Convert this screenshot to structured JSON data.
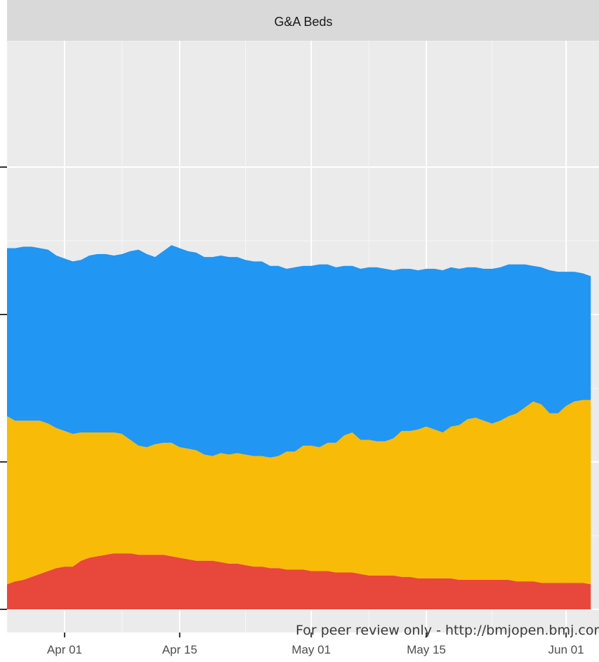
{
  "chart_data": {
    "type": "area",
    "stacked": true,
    "title": "G&A Beds",
    "xlabel": "",
    "ylabel": "",
    "x_ticks": [
      "Apr 01",
      "Apr 15",
      "May 01",
      "May 15",
      "Jun 01"
    ],
    "x_range": [
      "2020-03-25",
      "2020-06-05"
    ],
    "grid": true,
    "series": [
      {
        "color": "#E8473B",
        "points": [
          [
            "2020-03-25",
            17
          ],
          [
            "2020-03-26",
            19
          ],
          [
            "2020-03-27",
            20
          ],
          [
            "2020-03-28",
            22
          ],
          [
            "2020-03-29",
            24
          ],
          [
            "2020-03-30",
            26
          ],
          [
            "2020-03-31",
            28
          ],
          [
            "2020-04-01",
            29
          ],
          [
            "2020-04-02",
            29
          ],
          [
            "2020-04-03",
            33
          ],
          [
            "2020-04-04",
            35
          ],
          [
            "2020-04-05",
            36
          ],
          [
            "2020-04-06",
            37
          ],
          [
            "2020-04-07",
            38
          ],
          [
            "2020-04-08",
            38
          ],
          [
            "2020-04-09",
            38
          ],
          [
            "2020-04-10",
            37
          ],
          [
            "2020-04-11",
            37
          ],
          [
            "2020-04-12",
            37
          ],
          [
            "2020-04-13",
            37
          ],
          [
            "2020-04-14",
            36
          ],
          [
            "2020-04-15",
            35
          ],
          [
            "2020-04-16",
            34
          ],
          [
            "2020-04-17",
            33
          ],
          [
            "2020-04-18",
            33
          ],
          [
            "2020-04-19",
            33
          ],
          [
            "2020-04-20",
            32
          ],
          [
            "2020-04-21",
            31
          ],
          [
            "2020-04-22",
            31
          ],
          [
            "2020-04-23",
            30
          ],
          [
            "2020-04-24",
            29
          ],
          [
            "2020-04-25",
            29
          ],
          [
            "2020-04-26",
            28
          ],
          [
            "2020-04-27",
            28
          ],
          [
            "2020-04-28",
            27
          ],
          [
            "2020-04-29",
            27
          ],
          [
            "2020-04-30",
            27
          ],
          [
            "2020-05-01",
            26
          ],
          [
            "2020-05-02",
            26
          ],
          [
            "2020-05-03",
            26
          ],
          [
            "2020-05-04",
            25
          ],
          [
            "2020-05-05",
            25
          ],
          [
            "2020-05-06",
            25
          ],
          [
            "2020-05-07",
            24
          ],
          [
            "2020-05-08",
            23
          ],
          [
            "2020-05-09",
            23
          ],
          [
            "2020-05-10",
            23
          ],
          [
            "2020-05-11",
            23
          ],
          [
            "2020-05-12",
            22
          ],
          [
            "2020-05-13",
            22
          ],
          [
            "2020-05-14",
            21
          ],
          [
            "2020-05-15",
            21
          ],
          [
            "2020-05-16",
            21
          ],
          [
            "2020-05-17",
            21
          ],
          [
            "2020-05-18",
            21
          ],
          [
            "2020-05-19",
            20
          ],
          [
            "2020-05-20",
            20
          ],
          [
            "2020-05-21",
            20
          ],
          [
            "2020-05-22",
            20
          ],
          [
            "2020-05-23",
            20
          ],
          [
            "2020-05-24",
            20
          ],
          [
            "2020-05-25",
            20
          ],
          [
            "2020-05-26",
            19
          ],
          [
            "2020-05-27",
            19
          ],
          [
            "2020-05-28",
            19
          ],
          [
            "2020-05-29",
            18
          ],
          [
            "2020-05-30",
            18
          ],
          [
            "2020-05-31",
            18
          ],
          [
            "2020-06-01",
            18
          ],
          [
            "2020-06-02",
            18
          ],
          [
            "2020-06-03",
            18
          ],
          [
            "2020-06-04",
            17
          ]
        ]
      },
      {
        "color": "#F8BB07",
        "points": [
          [
            "2020-03-25",
            114
          ],
          [
            "2020-03-26",
            109
          ],
          [
            "2020-03-27",
            108
          ],
          [
            "2020-03-28",
            106
          ],
          [
            "2020-03-29",
            104
          ],
          [
            "2020-03-30",
            100
          ],
          [
            "2020-03-31",
            95
          ],
          [
            "2020-04-01",
            92
          ],
          [
            "2020-04-02",
            90
          ],
          [
            "2020-04-03",
            87
          ],
          [
            "2020-04-04",
            85
          ],
          [
            "2020-04-05",
            84
          ],
          [
            "2020-04-06",
            83
          ],
          [
            "2020-04-07",
            82
          ],
          [
            "2020-04-08",
            81
          ],
          [
            "2020-04-09",
            77
          ],
          [
            "2020-04-10",
            74
          ],
          [
            "2020-04-11",
            73
          ],
          [
            "2020-04-12",
            75
          ],
          [
            "2020-04-13",
            76
          ],
          [
            "2020-04-14",
            77
          ],
          [
            "2020-04-15",
            75
          ],
          [
            "2020-04-16",
            75
          ],
          [
            "2020-04-17",
            75
          ],
          [
            "2020-04-18",
            72
          ],
          [
            "2020-04-19",
            71
          ],
          [
            "2020-04-20",
            74
          ],
          [
            "2020-04-21",
            74
          ],
          [
            "2020-04-22",
            75
          ],
          [
            "2020-04-23",
            75
          ],
          [
            "2020-04-24",
            75
          ],
          [
            "2020-04-25",
            75
          ],
          [
            "2020-04-26",
            75
          ],
          [
            "2020-04-27",
            76
          ],
          [
            "2020-04-28",
            80
          ],
          [
            "2020-04-29",
            80
          ],
          [
            "2020-04-30",
            84
          ],
          [
            "2020-05-01",
            85
          ],
          [
            "2020-05-02",
            84
          ],
          [
            "2020-05-03",
            87
          ],
          [
            "2020-05-04",
            88
          ],
          [
            "2020-05-05",
            93
          ],
          [
            "2020-05-06",
            95
          ],
          [
            "2020-05-07",
            91
          ],
          [
            "2020-05-08",
            92
          ],
          [
            "2020-05-09",
            91
          ],
          [
            "2020-05-10",
            91
          ],
          [
            "2020-05-11",
            93
          ],
          [
            "2020-05-12",
            99
          ],
          [
            "2020-05-13",
            99
          ],
          [
            "2020-05-14",
            101
          ],
          [
            "2020-05-15",
            103
          ],
          [
            "2020-05-16",
            101
          ],
          [
            "2020-05-17",
            99
          ],
          [
            "2020-05-18",
            103
          ],
          [
            "2020-05-19",
            105
          ],
          [
            "2020-05-20",
            109
          ],
          [
            "2020-05-21",
            110
          ],
          [
            "2020-05-22",
            108
          ],
          [
            "2020-05-23",
            106
          ],
          [
            "2020-05-24",
            108
          ],
          [
            "2020-05-25",
            111
          ],
          [
            "2020-05-26",
            114
          ],
          [
            "2020-05-27",
            118
          ],
          [
            "2020-05-28",
            122
          ],
          [
            "2020-05-29",
            121
          ],
          [
            "2020-05-30",
            115
          ],
          [
            "2020-05-31",
            115
          ],
          [
            "2020-06-01",
            120
          ],
          [
            "2020-06-02",
            123
          ],
          [
            "2020-06-03",
            124
          ],
          [
            "2020-06-04",
            125
          ]
        ]
      },
      {
        "color": "#2196F3",
        "points": [
          [
            "2020-03-25",
            114
          ],
          [
            "2020-03-26",
            117
          ],
          [
            "2020-03-27",
            118
          ],
          [
            "2020-03-28",
            118
          ],
          [
            "2020-03-29",
            117
          ],
          [
            "2020-03-30",
            118
          ],
          [
            "2020-03-31",
            117
          ],
          [
            "2020-04-01",
            117
          ],
          [
            "2020-04-02",
            117
          ],
          [
            "2020-04-03",
            117
          ],
          [
            "2020-04-04",
            120
          ],
          [
            "2020-04-05",
            121
          ],
          [
            "2020-04-06",
            121
          ],
          [
            "2020-04-07",
            120
          ],
          [
            "2020-04-08",
            122
          ],
          [
            "2020-04-09",
            128
          ],
          [
            "2020-04-10",
            133
          ],
          [
            "2020-04-11",
            131
          ],
          [
            "2020-04-12",
            127
          ],
          [
            "2020-04-13",
            130
          ],
          [
            "2020-04-14",
            134
          ],
          [
            "2020-04-15",
            135
          ],
          [
            "2020-04-16",
            134
          ],
          [
            "2020-04-17",
            134
          ],
          [
            "2020-04-18",
            134
          ],
          [
            "2020-04-19",
            135
          ],
          [
            "2020-04-20",
            134
          ],
          [
            "2020-04-21",
            134
          ],
          [
            "2020-04-22",
            133
          ],
          [
            "2020-04-23",
            132
          ],
          [
            "2020-04-24",
            132
          ],
          [
            "2020-04-25",
            132
          ],
          [
            "2020-04-26",
            130
          ],
          [
            "2020-04-27",
            129
          ],
          [
            "2020-04-28",
            124
          ],
          [
            "2020-04-29",
            125
          ],
          [
            "2020-04-30",
            122
          ],
          [
            "2020-05-01",
            122
          ],
          [
            "2020-05-02",
            124
          ],
          [
            "2020-05-03",
            121
          ],
          [
            "2020-05-04",
            119
          ],
          [
            "2020-05-05",
            115
          ],
          [
            "2020-05-06",
            113
          ],
          [
            "2020-05-07",
            116
          ],
          [
            "2020-05-08",
            117
          ],
          [
            "2020-05-09",
            118
          ],
          [
            "2020-05-10",
            117
          ],
          [
            "2020-05-11",
            114
          ],
          [
            "2020-05-12",
            110
          ],
          [
            "2020-05-13",
            110
          ],
          [
            "2020-05-14",
            108
          ],
          [
            "2020-05-15",
            107
          ],
          [
            "2020-05-16",
            109
          ],
          [
            "2020-05-17",
            110
          ],
          [
            "2020-05-18",
            108
          ],
          [
            "2020-05-19",
            106
          ],
          [
            "2020-05-20",
            103
          ],
          [
            "2020-05-21",
            102
          ],
          [
            "2020-05-22",
            103
          ],
          [
            "2020-05-23",
            105
          ],
          [
            "2020-05-24",
            104
          ],
          [
            "2020-05-25",
            103
          ],
          [
            "2020-05-26",
            101
          ],
          [
            "2020-05-27",
            97
          ],
          [
            "2020-05-28",
            92
          ],
          [
            "2020-05-29",
            93
          ],
          [
            "2020-05-30",
            97
          ],
          [
            "2020-05-31",
            96
          ],
          [
            "2020-06-01",
            91
          ],
          [
            "2020-06-02",
            88
          ],
          [
            "2020-06-03",
            86
          ],
          [
            "2020-06-04",
            84
          ]
        ]
      }
    ]
  },
  "watermark": "For peer review only - http://bmjopen.bmj.com/site/about/guidelines.xhtml"
}
